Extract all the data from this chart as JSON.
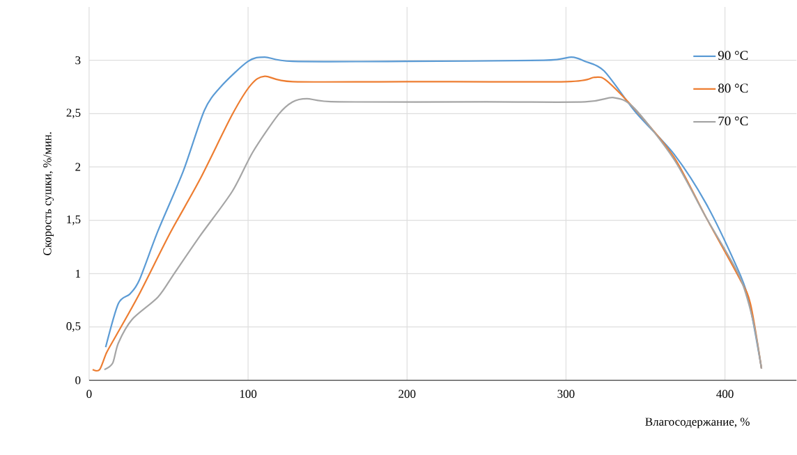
{
  "chart_data": {
    "type": "line",
    "xlabel": "Влагосодержание, %",
    "ylabel": "Скорость сушки, %/мин.",
    "xlim": [
      0,
      445
    ],
    "ylim": [
      0,
      3.5
    ],
    "xticks": [
      0,
      100,
      200,
      300,
      400
    ],
    "yticks": [
      0,
      {
        "value": 0.5,
        "label": "0,5"
      },
      1,
      {
        "value": 1.5,
        "label": "1,5"
      },
      2,
      {
        "value": 2.5,
        "label": "2,5"
      },
      3
    ],
    "grid": true,
    "legend": "right",
    "marker": "none",
    "line_style": "solid",
    "series": [
      {
        "name": "90 °C",
        "color": "#5b9bd5",
        "x": [
          10.4,
          18.4,
          25.7,
          31.6,
          43.3,
          59.2,
          72.5,
          82.7,
          100,
          110.5,
          128,
          200,
          286,
          303.5,
          312,
          324,
          344,
          368,
          388,
          406,
          414.5,
          423
        ],
        "values": [
          0.31,
          0.72,
          0.81,
          0.94,
          1.4,
          1.96,
          2.53,
          2.75,
          2.99,
          3.03,
          2.99,
          2.99,
          3.0,
          3.03,
          2.99,
          2.9,
          2.51,
          2.12,
          1.66,
          1.11,
          0.78,
          0.11
        ]
      },
      {
        "name": "80 °C",
        "color": "#ed7d31",
        "x": [
          2.2,
          6.6,
          11,
          17,
          31.6,
          50.6,
          69.6,
          90,
          101.8,
          110.5,
          128,
          200,
          300.5,
          318,
          325.5,
          344,
          368,
          388,
          409,
          416,
          423
        ],
        "values": [
          0.1,
          0.1,
          0.26,
          0.42,
          0.81,
          1.37,
          1.88,
          2.49,
          2.77,
          2.85,
          2.8,
          2.8,
          2.8,
          2.84,
          2.81,
          2.53,
          2.09,
          1.53,
          0.96,
          0.72,
          0.11
        ]
      },
      {
        "name": "70 °C",
        "color": "#a5a5a5",
        "x": [
          9.6,
          14.8,
          18.4,
          27,
          43.3,
          53.5,
          69.6,
          90,
          103,
          119,
          128,
          137,
          157,
          250,
          312,
          330,
          343,
          368,
          388,
          409,
          417.5,
          423
        ],
        "values": [
          0.1,
          0.16,
          0.35,
          0.57,
          0.78,
          1.0,
          1.35,
          1.77,
          2.14,
          2.49,
          2.61,
          2.64,
          2.61,
          2.61,
          2.61,
          2.65,
          2.55,
          2.07,
          1.53,
          0.98,
          0.57,
          0.11
        ]
      }
    ]
  }
}
